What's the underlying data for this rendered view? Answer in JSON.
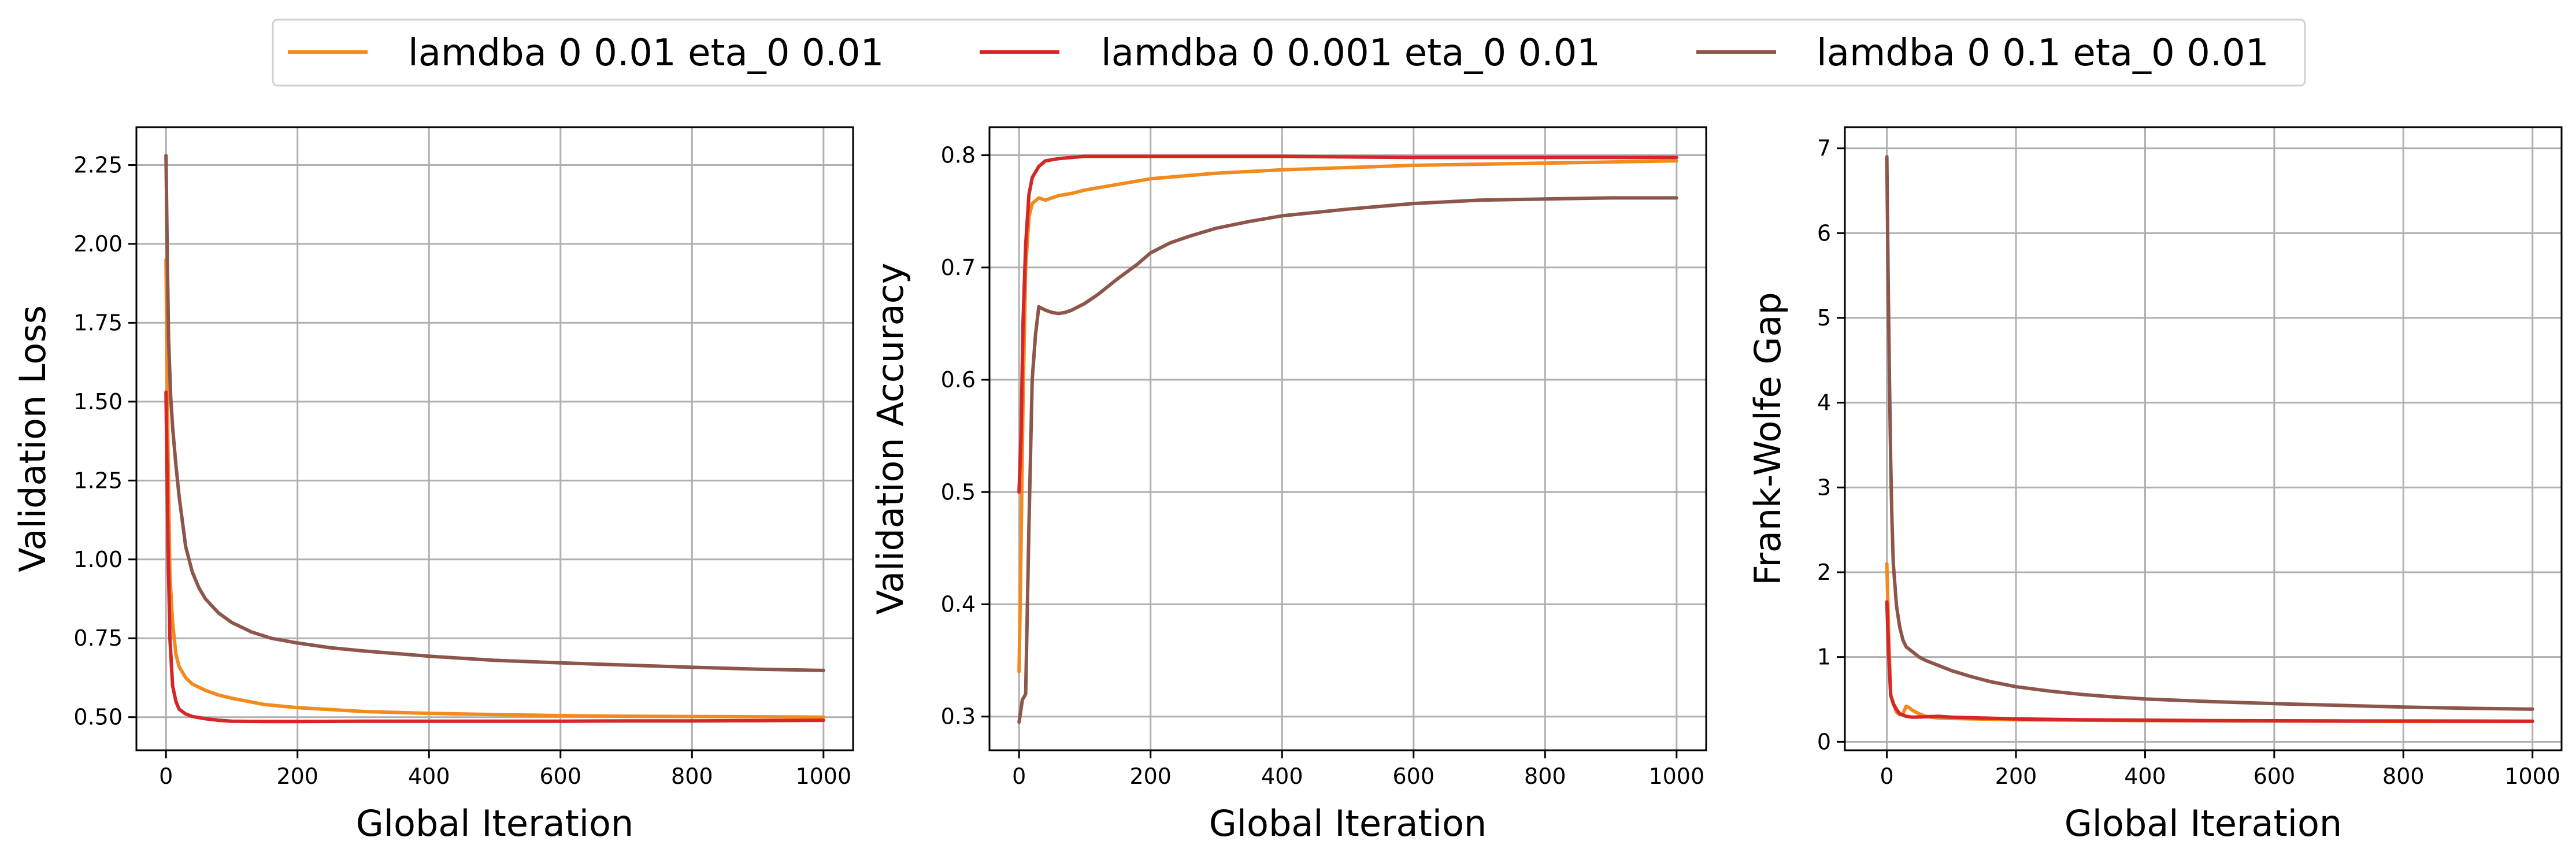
{
  "chart_data": [
    {
      "type": "line",
      "panel": "loss",
      "xlabel": "Global Iteration",
      "ylabel": "Validation Loss",
      "xlim": [
        -45,
        1045
      ],
      "ylim": [
        0.395,
        2.37
      ],
      "xticks": [
        0,
        200,
        400,
        600,
        800,
        1000
      ],
      "yticks": [
        0.5,
        0.75,
        1.0,
        1.25,
        1.5,
        1.75,
        2.0,
        2.25
      ],
      "ytick_labels": [
        "0.50",
        "0.75",
        "1.00",
        "1.25",
        "1.50",
        "1.75",
        "2.00",
        "2.25"
      ],
      "grid": true,
      "series": [
        {
          "name": "lamdba 0 0.01 eta_0 0.01",
          "color": "#f28a1e",
          "points": [
            [
              0,
              1.95
            ],
            [
              3,
              1.35
            ],
            [
              6,
              0.95
            ],
            [
              10,
              0.8
            ],
            [
              15,
              0.7
            ],
            [
              20,
              0.66
            ],
            [
              30,
              0.625
            ],
            [
              40,
              0.605
            ],
            [
              60,
              0.585
            ],
            [
              80,
              0.57
            ],
            [
              100,
              0.56
            ],
            [
              150,
              0.54
            ],
            [
              200,
              0.53
            ],
            [
              300,
              0.518
            ],
            [
              400,
              0.512
            ],
            [
              500,
              0.508
            ],
            [
              600,
              0.505
            ],
            [
              700,
              0.503
            ],
            [
              800,
              0.502
            ],
            [
              900,
              0.501
            ],
            [
              1000,
              0.5
            ]
          ]
        },
        {
          "name": "lamdba 0 0.001 eta_0 0.01",
          "color": "#d62728",
          "points": [
            [
              0,
              1.53
            ],
            [
              3,
              1.05
            ],
            [
              6,
              0.75
            ],
            [
              10,
              0.6
            ],
            [
              15,
              0.55
            ],
            [
              20,
              0.525
            ],
            [
              30,
              0.51
            ],
            [
              40,
              0.502
            ],
            [
              60,
              0.495
            ],
            [
              80,
              0.49
            ],
            [
              100,
              0.487
            ],
            [
              150,
              0.486
            ],
            [
              200,
              0.486
            ],
            [
              300,
              0.487
            ],
            [
              400,
              0.487
            ],
            [
              500,
              0.487
            ],
            [
              600,
              0.487
            ],
            [
              700,
              0.488
            ],
            [
              800,
              0.488
            ],
            [
              900,
              0.489
            ],
            [
              1000,
              0.49
            ]
          ]
        },
        {
          "name": "lamdba 0 0.1 eta_0 0.01",
          "color": "#8c564b",
          "points": [
            [
              0,
              2.28
            ],
            [
              2,
              1.95
            ],
            [
              4,
              1.7
            ],
            [
              7,
              1.52
            ],
            [
              10,
              1.42
            ],
            [
              15,
              1.3
            ],
            [
              20,
              1.2
            ],
            [
              30,
              1.04
            ],
            [
              40,
              0.96
            ],
            [
              50,
              0.91
            ],
            [
              60,
              0.875
            ],
            [
              80,
              0.83
            ],
            [
              100,
              0.8
            ],
            [
              130,
              0.77
            ],
            [
              160,
              0.75
            ],
            [
              200,
              0.735
            ],
            [
              250,
              0.72
            ],
            [
              300,
              0.71
            ],
            [
              400,
              0.693
            ],
            [
              500,
              0.68
            ],
            [
              600,
              0.672
            ],
            [
              700,
              0.665
            ],
            [
              800,
              0.658
            ],
            [
              900,
              0.652
            ],
            [
              1000,
              0.648
            ]
          ]
        }
      ]
    },
    {
      "type": "line",
      "panel": "accuracy",
      "xlabel": "Global Iteration",
      "ylabel": "Validation Accuracy",
      "xlim": [
        -45,
        1045
      ],
      "ylim": [
        0.27,
        0.825
      ],
      "xticks": [
        0,
        200,
        400,
        600,
        800,
        1000
      ],
      "yticks": [
        0.3,
        0.4,
        0.5,
        0.6,
        0.7,
        0.8
      ],
      "ytick_labels": [
        "0.3",
        "0.4",
        "0.5",
        "0.6",
        "0.7",
        "0.8"
      ],
      "grid": true,
      "series": [
        {
          "name": "lamdba 0 0.01 eta_0 0.01",
          "color": "#f28a1e",
          "points": [
            [
              0,
              0.34
            ],
            [
              3,
              0.45
            ],
            [
              6,
              0.58
            ],
            [
              10,
              0.7
            ],
            [
              15,
              0.745
            ],
            [
              20,
              0.757
            ],
            [
              30,
              0.762
            ],
            [
              40,
              0.76
            ],
            [
              60,
              0.764
            ],
            [
              80,
              0.766
            ],
            [
              100,
              0.769
            ],
            [
              150,
              0.774
            ],
            [
              200,
              0.779
            ],
            [
              300,
              0.784
            ],
            [
              400,
              0.787
            ],
            [
              500,
              0.789
            ],
            [
              600,
              0.791
            ],
            [
              700,
              0.792
            ],
            [
              800,
              0.793
            ],
            [
              900,
              0.794
            ],
            [
              1000,
              0.795
            ]
          ]
        },
        {
          "name": "lamdba 0 0.001 eta_0 0.01",
          "color": "#d62728",
          "points": [
            [
              0,
              0.5
            ],
            [
              3,
              0.55
            ],
            [
              6,
              0.65
            ],
            [
              10,
              0.72
            ],
            [
              15,
              0.765
            ],
            [
              20,
              0.78
            ],
            [
              30,
              0.79
            ],
            [
              40,
              0.795
            ],
            [
              60,
              0.797
            ],
            [
              80,
              0.798
            ],
            [
              100,
              0.799
            ],
            [
              200,
              0.799
            ],
            [
              400,
              0.799
            ],
            [
              600,
              0.798
            ],
            [
              800,
              0.798
            ],
            [
              1000,
              0.798
            ]
          ]
        },
        {
          "name": "lamdba 0 0.1 eta_0 0.01",
          "color": "#8c564b",
          "points": [
            [
              0,
              0.295
            ],
            [
              5,
              0.315
            ],
            [
              10,
              0.32
            ],
            [
              15,
              0.47
            ],
            [
              20,
              0.6
            ],
            [
              25,
              0.64
            ],
            [
              30,
              0.665
            ],
            [
              40,
              0.662
            ],
            [
              50,
              0.66
            ],
            [
              60,
              0.659
            ],
            [
              70,
              0.66
            ],
            [
              80,
              0.662
            ],
            [
              100,
              0.668
            ],
            [
              120,
              0.676
            ],
            [
              150,
              0.69
            ],
            [
              180,
              0.703
            ],
            [
              200,
              0.713
            ],
            [
              230,
              0.722
            ],
            [
              260,
              0.728
            ],
            [
              300,
              0.735
            ],
            [
              350,
              0.741
            ],
            [
              400,
              0.746
            ],
            [
              500,
              0.752
            ],
            [
              600,
              0.757
            ],
            [
              700,
              0.76
            ],
            [
              800,
              0.761
            ],
            [
              900,
              0.762
            ],
            [
              1000,
              0.762
            ]
          ]
        }
      ]
    },
    {
      "type": "line",
      "panel": "gap",
      "xlabel": "Global Iteration",
      "ylabel": "Frank-Wolfe Gap",
      "xlim": [
        -65,
        1045
      ],
      "ylim": [
        -0.1,
        7.25
      ],
      "xticks": [
        0,
        200,
        400,
        600,
        800,
        1000
      ],
      "yticks": [
        0,
        1,
        2,
        3,
        4,
        5,
        6,
        7
      ],
      "ytick_labels": [
        "0",
        "1",
        "2",
        "3",
        "4",
        "5",
        "6",
        "7"
      ],
      "grid": true,
      "series": [
        {
          "name": "lamdba 0 0.01 eta_0 0.01",
          "color": "#f28a1e",
          "points": [
            [
              0,
              2.1
            ],
            [
              3,
              1.2
            ],
            [
              6,
              0.55
            ],
            [
              10,
              0.45
            ],
            [
              15,
              0.35
            ],
            [
              20,
              0.32
            ],
            [
              25,
              0.33
            ],
            [
              30,
              0.42
            ],
            [
              35,
              0.4
            ],
            [
              40,
              0.37
            ],
            [
              50,
              0.33
            ],
            [
              60,
              0.3
            ],
            [
              80,
              0.28
            ],
            [
              100,
              0.275
            ],
            [
              200,
              0.26
            ],
            [
              400,
              0.25
            ],
            [
              600,
              0.245
            ],
            [
              800,
              0.24
            ],
            [
              1000,
              0.24
            ]
          ]
        },
        {
          "name": "lamdba 0 0.001 eta_0 0.01",
          "color": "#d62728",
          "points": [
            [
              0,
              1.65
            ],
            [
              3,
              1.0
            ],
            [
              6,
              0.55
            ],
            [
              10,
              0.45
            ],
            [
              15,
              0.38
            ],
            [
              20,
              0.33
            ],
            [
              30,
              0.3
            ],
            [
              40,
              0.29
            ],
            [
              60,
              0.295
            ],
            [
              80,
              0.3
            ],
            [
              100,
              0.29
            ],
            [
              150,
              0.28
            ],
            [
              200,
              0.27
            ],
            [
              300,
              0.26
            ],
            [
              400,
              0.255
            ],
            [
              500,
              0.25
            ],
            [
              600,
              0.248
            ],
            [
              700,
              0.246
            ],
            [
              800,
              0.245
            ],
            [
              900,
              0.244
            ],
            [
              1000,
              0.243
            ]
          ]
        },
        {
          "name": "lamdba 0 0.1 eta_0 0.01",
          "color": "#8c564b",
          "points": [
            [
              0,
              6.9
            ],
            [
              2,
              5.5
            ],
            [
              4,
              4.3
            ],
            [
              6,
              3.3
            ],
            [
              8,
              2.6
            ],
            [
              10,
              2.1
            ],
            [
              15,
              1.6
            ],
            [
              20,
              1.35
            ],
            [
              25,
              1.2
            ],
            [
              30,
              1.12
            ],
            [
              40,
              1.06
            ],
            [
              50,
              1.0
            ],
            [
              60,
              0.96
            ],
            [
              80,
              0.9
            ],
            [
              100,
              0.84
            ],
            [
              130,
              0.77
            ],
            [
              160,
              0.71
            ],
            [
              200,
              0.65
            ],
            [
              250,
              0.6
            ],
            [
              300,
              0.56
            ],
            [
              350,
              0.53
            ],
            [
              400,
              0.505
            ],
            [
              500,
              0.475
            ],
            [
              600,
              0.45
            ],
            [
              700,
              0.43
            ],
            [
              800,
              0.41
            ],
            [
              900,
              0.395
            ],
            [
              1000,
              0.385
            ]
          ]
        }
      ]
    }
  ],
  "legend": {
    "position": "top-center",
    "entries": [
      {
        "label": "lamdba 0 0.01 eta_0 0.01",
        "color": "#f28a1e"
      },
      {
        "label": "lamdba 0 0.001 eta_0 0.01",
        "color": "#d62728"
      },
      {
        "label": "lamdba 0 0.1 eta_0 0.01",
        "color": "#8c564b"
      }
    ]
  }
}
